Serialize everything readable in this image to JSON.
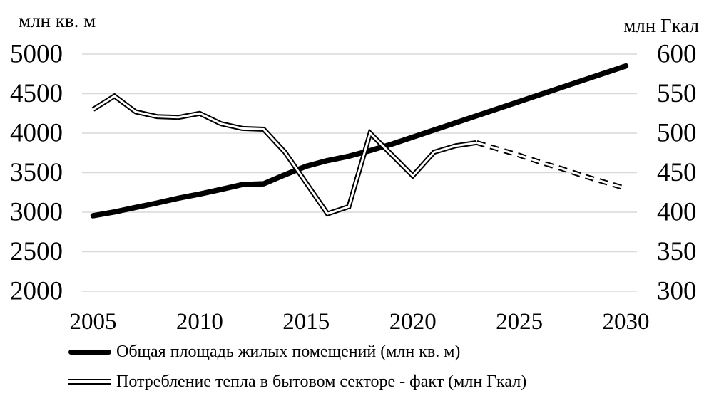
{
  "chart_data": {
    "type": "line",
    "grid": "horizontal-only",
    "gridline_color": "#d9d9d9",
    "series_color": "#000000",
    "legend_position": "bottom-left",
    "x_ticks": [
      "2005",
      "2010",
      "2015",
      "2020",
      "2025",
      "2030"
    ],
    "x_range": [
      2005,
      2030
    ],
    "axes": {
      "left": {
        "title": "млн кв. м",
        "min": 2000,
        "max": 5000,
        "ticks": [
          "5000",
          "4500",
          "4000",
          "3500",
          "3000",
          "2500",
          "2000"
        ]
      },
      "right": {
        "title": "млн Гкал",
        "min": 300,
        "max": 600,
        "ticks": [
          "600",
          "550",
          "500",
          "450",
          "400",
          "350",
          "300"
        ]
      }
    },
    "series": [
      {
        "name": "Общая площадь жилых помещений (млн кв. м)",
        "axis": "left",
        "style": "thick-solid",
        "years": [
          2005,
          2006,
          2007,
          2008,
          2009,
          2010,
          2011,
          2012,
          2013,
          2014,
          2015,
          2016,
          2017,
          2018,
          2019,
          2020,
          2021,
          2022,
          2023,
          2024,
          2025,
          2026,
          2027,
          2028,
          2029,
          2030
        ],
        "values": [
          2955,
          3003,
          3060,
          3116,
          3177,
          3229,
          3288,
          3349,
          3359,
          3473,
          3581,
          3653,
          3708,
          3780,
          3860,
          3950,
          4040,
          4130,
          4220,
          4310,
          4400,
          4490,
          4580,
          4670,
          4760,
          4850
        ]
      },
      {
        "name": "Потребление тепла в бытовом секторе - факт (млн Гкал)",
        "axis": "right",
        "style": "double-solid",
        "years": [
          2005,
          2006,
          2007,
          2008,
          2009,
          2010,
          2011,
          2012,
          2013,
          2014,
          2015,
          2016,
          2017,
          2018,
          2019,
          2020,
          2021,
          2022,
          2023
        ],
        "values": [
          530,
          547,
          527,
          521,
          520,
          525,
          512,
          506,
          505,
          476,
          437,
          398,
          407,
          500,
          473,
          446,
          476,
          484,
          488
        ]
      },
      {
        "name": "",
        "axis": "right",
        "style": "double-dashed",
        "in_legend": false,
        "years": [
          2023,
          2024,
          2025,
          2026,
          2027,
          2028,
          2029,
          2030
        ],
        "values": [
          488,
          480,
          472,
          463,
          455,
          446,
          438,
          430
        ]
      }
    ]
  },
  "axis_titles": {
    "left": "млн кв. м",
    "right": "млн Гкал"
  },
  "legend": {
    "items": [
      {
        "label": "Общая площадь жилых помещений (млн кв. м)",
        "marker": "thick-solid-line"
      },
      {
        "label": "Потребление тепла в бытовом секторе - факт (млн Гкал)",
        "marker": "double-line"
      }
    ]
  }
}
